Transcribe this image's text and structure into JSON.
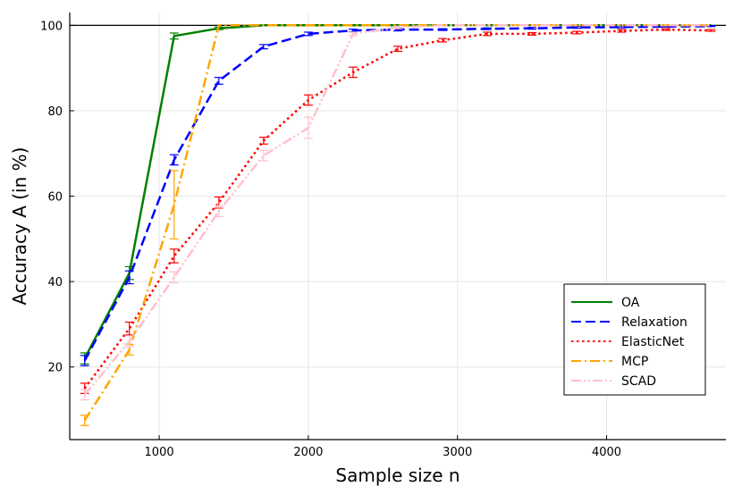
{
  "chart_data": {
    "type": "line",
    "title": "",
    "xlabel": "Sample size n",
    "ylabel": "Accuracy A (in %)",
    "xlim": [
      400,
      4800
    ],
    "ylim": [
      3,
      103
    ],
    "x_ticks": [
      1000,
      2000,
      3000,
      4000
    ],
    "y_ticks": [
      20,
      40,
      60,
      80,
      100
    ],
    "grid": true,
    "legend_position": "bottom-right",
    "series": [
      {
        "name": "OA",
        "color": "#008000",
        "dash": "solid",
        "x": [
          500,
          800,
          1100,
          1400,
          1700,
          2000,
          2300,
          2600,
          2900,
          3200,
          3500,
          3800,
          4100,
          4400,
          4700
        ],
        "y": [
          22,
          42,
          97.5,
          99.3,
          100,
          100,
          100,
          100,
          100,
          100,
          100,
          100,
          100,
          100,
          100
        ],
        "err": [
          1.3,
          1.5,
          0.7,
          0.3,
          0,
          0,
          0,
          0,
          0,
          0,
          0,
          0,
          0,
          0,
          0
        ]
      },
      {
        "name": "Relaxation",
        "color": "#0000ff",
        "dash": "dash",
        "x": [
          500,
          800,
          1100,
          1400,
          1700,
          2000,
          2300,
          2600,
          2900,
          3200,
          3500,
          3800,
          4100,
          4400,
          4700
        ],
        "y": [
          21.5,
          41,
          68.5,
          87,
          95,
          98,
          98.8,
          99,
          99,
          99.2,
          99.3,
          99.5,
          99.6,
          99.7,
          99.8
        ],
        "err": [
          1.2,
          1.5,
          1.2,
          0.8,
          0.5,
          0.4,
          0.3,
          0.3,
          0.2,
          0.2,
          0.2,
          0.2,
          0.2,
          0.1,
          0.1
        ]
      },
      {
        "name": "ElasticNet",
        "color": "#ff0000",
        "dash": "dot",
        "x": [
          500,
          800,
          1100,
          1400,
          1700,
          2000,
          2300,
          2600,
          2900,
          3200,
          3500,
          3800,
          4100,
          4400,
          4700
        ],
        "y": [
          15,
          29,
          46,
          58.5,
          73,
          82.5,
          89,
          94.5,
          96.5,
          98,
          98,
          98.3,
          98.7,
          99,
          98.8
        ],
        "err": [
          1.2,
          1.5,
          1.6,
          1.3,
          0.8,
          1.2,
          1.2,
          0.6,
          0.4,
          0.4,
          0.3,
          0.3,
          0.3,
          0.2,
          0.2
        ]
      },
      {
        "name": "MCP",
        "color": "#ffa500",
        "dash": "dashdot",
        "x": [
          500,
          800,
          1100,
          1400,
          1700,
          2000,
          2300,
          2600,
          2900,
          3200,
          3500,
          3800,
          4100,
          4400,
          4700
        ],
        "y": [
          7.5,
          24,
          58,
          100,
          100,
          100,
          100,
          100,
          100,
          100,
          100,
          100,
          100,
          100,
          100
        ],
        "err": [
          1.2,
          1.2,
          8,
          0,
          0,
          0,
          0,
          0,
          0,
          0,
          0,
          0,
          0,
          0,
          0
        ]
      },
      {
        "name": "SCAD",
        "color": "#ffc0cb",
        "dash": "dashdotdot",
        "x": [
          500,
          800,
          1100,
          1400,
          1700,
          2000,
          2300,
          2600,
          2900,
          3200,
          3500,
          3800,
          4100,
          4400,
          4700
        ],
        "y": [
          13.5,
          26,
          41,
          56.5,
          69.5,
          76,
          98,
          99.5,
          100,
          100,
          100,
          100,
          100,
          100,
          100
        ],
        "err": [
          1.2,
          1.3,
          1.3,
          1.3,
          1.2,
          2.5,
          0.4,
          0.3,
          0,
          0,
          0,
          0,
          0,
          0,
          0
        ]
      }
    ]
  }
}
